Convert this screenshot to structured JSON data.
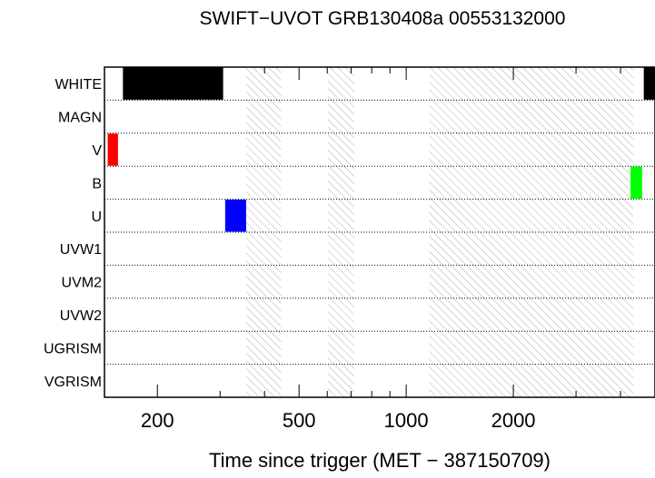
{
  "chart_data": {
    "type": "timeline",
    "title": "SWIFT−UVOT GRB130408a 00553132000",
    "xlabel": "Time since trigger (MET − 387150709)",
    "ylabel": "",
    "x_scale": "log",
    "xlim": [
      142,
      5000
    ],
    "x_ticks": [
      200,
      500,
      1000,
      2000
    ],
    "x_tick_labels": [
      "200",
      "500",
      "1000",
      "2000"
    ],
    "filters": [
      "WHITE",
      "MAGN",
      "V",
      "B",
      "U",
      "UVW1",
      "UVM2",
      "UVW2",
      "UGRISM",
      "VGRISM"
    ],
    "exposures": [
      {
        "filter": "WHITE",
        "start": 160,
        "end": 306,
        "color": "#000000"
      },
      {
        "filter": "WHITE",
        "start": 4650,
        "end": 5000,
        "color": "#000000"
      },
      {
        "filter": "V",
        "start": 145,
        "end": 155,
        "color": "#ff0000"
      },
      {
        "filter": "B",
        "start": 4270,
        "end": 4600,
        "color": "#00ff00"
      },
      {
        "filter": "U",
        "start": 310,
        "end": 355,
        "color": "#0000ff"
      }
    ],
    "gaps": [
      {
        "start": 355,
        "end": 445
      },
      {
        "start": 603,
        "end": 715
      },
      {
        "start": 1160,
        "end": 4350
      }
    ]
  }
}
